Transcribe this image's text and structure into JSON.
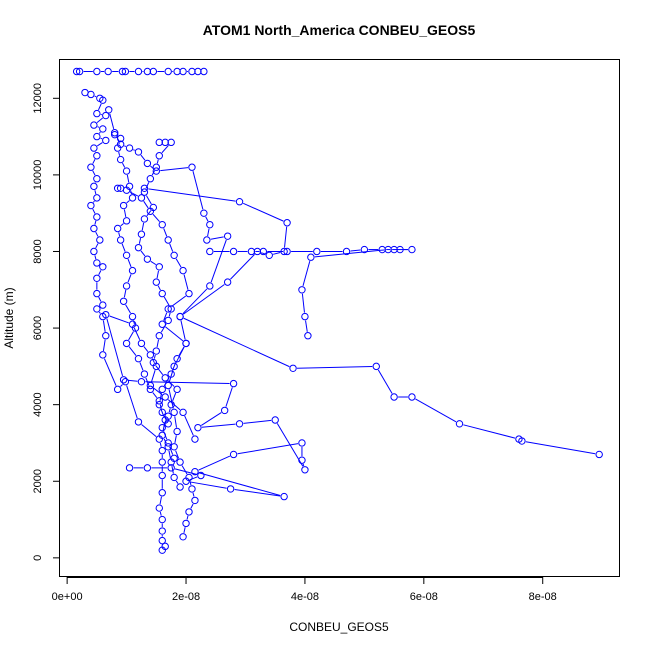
{
  "chart_data": {
    "type": "scatter",
    "title": "ATOM1 North_America CONBEU_GEOS5",
    "xlabel": "CONBEU_GEOS5",
    "ylabel": "Altitude (m)",
    "xlim": [
      -1.2e-09,
      9.3e-08
    ],
    "ylim": [
      -500,
      13000
    ],
    "x_ticks": [
      0,
      2e-08,
      4e-08,
      6e-08,
      8e-08
    ],
    "x_tick_labels": [
      "0e+00",
      "2e-08",
      "4e-08",
      "6e-08",
      "8e-08"
    ],
    "y_ticks": [
      0,
      2000,
      4000,
      6000,
      8000,
      10000,
      12000
    ],
    "y_tick_labels": [
      "0",
      "2000",
      "4000",
      "6000",
      "8000",
      "10000",
      "12000"
    ],
    "grid": false,
    "marker": "open-circle",
    "connected": true,
    "series_color": "#0000ff",
    "series": [
      {
        "points": [
          [
            1.6e-09,
            12700
          ],
          [
            2.1e-09,
            12700
          ],
          [
            5e-09,
            12700
          ],
          [
            6.9e-09,
            12700
          ],
          [
            9.3e-09,
            12700
          ],
          [
            9.8e-09,
            12700
          ],
          [
            1.2e-08,
            12700
          ],
          [
            1.35e-08,
            12700
          ],
          [
            1.45e-08,
            12700
          ],
          [
            1.7e-08,
            12700
          ],
          [
            1.85e-08,
            12700
          ],
          [
            1.95e-08,
            12700
          ],
          [
            2.1e-08,
            12700
          ],
          [
            2.2e-08,
            12700
          ],
          [
            2.3e-08,
            12700
          ]
        ]
      },
      {
        "points": [
          [
            3e-09,
            12150
          ],
          [
            4e-09,
            12100
          ],
          [
            5.5e-09,
            12000
          ],
          [
            6e-09,
            11950
          ],
          [
            5e-09,
            11600
          ],
          [
            6.5e-09,
            11550
          ],
          [
            4.5e-09,
            11300
          ],
          [
            6e-09,
            11200
          ],
          [
            5e-09,
            11000
          ],
          [
            6.5e-09,
            10900
          ],
          [
            4.5e-09,
            10700
          ],
          [
            5e-09,
            10500
          ],
          [
            4e-09,
            10200
          ],
          [
            5e-09,
            9900
          ],
          [
            4.5e-09,
            9700
          ],
          [
            5e-09,
            9400
          ],
          [
            4e-09,
            9200
          ],
          [
            5e-09,
            8900
          ],
          [
            4.5e-09,
            8600
          ],
          [
            5.5e-09,
            8300
          ],
          [
            4.5e-09,
            8000
          ],
          [
            5e-09,
            7700
          ],
          [
            6e-09,
            7600
          ],
          [
            5e-09,
            7300
          ],
          [
            5e-09,
            6900
          ],
          [
            6e-09,
            6600
          ],
          [
            5e-09,
            6500
          ],
          [
            6e-09,
            6300
          ],
          [
            6.5e-09,
            5800
          ],
          [
            6e-09,
            5300
          ],
          [
            8.5e-09,
            4400
          ],
          [
            9.8e-09,
            4600
          ],
          [
            1.2e-08,
            3550
          ],
          [
            1.55e-08,
            3100
          ],
          [
            1.6e-08,
            2800
          ],
          [
            1.6e-08,
            2500
          ],
          [
            1.6e-08,
            2150
          ],
          [
            1.6e-08,
            1700
          ],
          [
            1.55e-08,
            1300
          ],
          [
            1.6e-08,
            1000
          ],
          [
            1.6e-08,
            700
          ],
          [
            1.6e-08,
            450
          ],
          [
            1.65e-08,
            300
          ],
          [
            1.6e-08,
            200
          ]
        ]
      },
      {
        "points": [
          [
            7e-09,
            11700
          ],
          [
            8e-09,
            11100
          ],
          [
            9e-09,
            10800
          ],
          [
            1.05e-08,
            10700
          ],
          [
            1.2e-08,
            10600
          ],
          [
            1.35e-08,
            10300
          ],
          [
            1.5e-08,
            10100
          ],
          [
            2.1e-08,
            10200
          ],
          [
            2.3e-08,
            9000
          ],
          [
            2.4e-08,
            8700
          ],
          [
            2.35e-08,
            8300
          ],
          [
            2.7e-08,
            8400
          ],
          [
            2.4e-08,
            7100
          ],
          [
            1.9e-08,
            6300
          ],
          [
            2e-08,
            5600
          ],
          [
            1.8e-08,
            5000
          ],
          [
            1.7e-08,
            4500
          ],
          [
            1.8e-08,
            3800
          ],
          [
            1.85e-08,
            3300
          ],
          [
            1.8e-08,
            2900
          ],
          [
            1.9e-08,
            2500
          ],
          [
            2.05e-08,
            2100
          ],
          [
            2.1e-08,
            1800
          ],
          [
            2.15e-08,
            1500
          ],
          [
            2.05e-08,
            1200
          ],
          [
            2e-08,
            900
          ],
          [
            1.95e-08,
            550
          ]
        ]
      },
      {
        "points": [
          [
            2.4e-08,
            8000
          ],
          [
            2.8e-08,
            8000
          ],
          [
            3.1e-08,
            8000
          ],
          [
            3.3e-08,
            8000
          ],
          [
            3.7e-08,
            8000
          ],
          [
            4.2e-08,
            8000
          ],
          [
            4.7e-08,
            8000
          ],
          [
            5e-08,
            8050
          ],
          [
            5.3e-08,
            8050
          ],
          [
            5.5e-08,
            8050
          ],
          [
            5.6e-08,
            8050
          ],
          [
            5.8e-08,
            8050
          ],
          [
            5.4e-08,
            8050
          ],
          [
            4.1e-08,
            7850
          ],
          [
            3.95e-08,
            7000
          ],
          [
            4e-08,
            6300
          ],
          [
            4.05e-08,
            5800
          ]
        ]
      },
      {
        "points": [
          [
            1.3e-08,
            9650
          ],
          [
            2.9e-08,
            9300
          ],
          [
            3.7e-08,
            8750
          ],
          [
            3.65e-08,
            8000
          ],
          [
            3.4e-08,
            7900
          ],
          [
            3.2e-08,
            8000
          ],
          [
            2.7e-08,
            7200
          ],
          [
            1.9e-08,
            6300
          ],
          [
            3.8e-08,
            4950
          ],
          [
            5.2e-08,
            5000
          ],
          [
            5.5e-08,
            4200
          ],
          [
            5.8e-08,
            4200
          ],
          [
            6.6e-08,
            3500
          ],
          [
            7.6e-08,
            3100
          ],
          [
            7.65e-08,
            3050
          ],
          [
            8.95e-08,
            2700
          ]
        ]
      },
      {
        "points": [
          [
            1.05e-08,
            2350
          ],
          [
            1.35e-08,
            2350
          ],
          [
            1.75e-08,
            2350
          ],
          [
            2.25e-08,
            2150
          ],
          [
            2e-08,
            2000
          ],
          [
            2.75e-08,
            1800
          ],
          [
            3.65e-08,
            1600
          ],
          [
            2.15e-08,
            2250
          ],
          [
            2.8e-08,
            2700
          ],
          [
            3.95e-08,
            3000
          ],
          [
            3.95e-08,
            2550
          ],
          [
            4e-08,
            2300
          ],
          [
            3.5e-08,
            3600
          ],
          [
            2.9e-08,
            3500
          ],
          [
            2.2e-08,
            3400
          ],
          [
            2.65e-08,
            3850
          ],
          [
            2.8e-08,
            4550
          ],
          [
            1.25e-08,
            4600
          ],
          [
            9.5e-09,
            4650
          ],
          [
            6.5e-09,
            6350
          ],
          [
            1.1e-08,
            6100
          ],
          [
            1.25e-08,
            5600
          ],
          [
            1.4e-08,
            5300
          ],
          [
            1.5e-08,
            5000
          ],
          [
            1.4e-08,
            4500
          ],
          [
            1.65e-08,
            4200
          ],
          [
            1.95e-08,
            3800
          ],
          [
            2.15e-08,
            3100
          ]
        ]
      },
      {
        "points": [
          [
            1.55e-08,
            10850
          ],
          [
            1.65e-08,
            10850
          ],
          [
            1.75e-08,
            10850
          ],
          [
            1.55e-08,
            10500
          ],
          [
            1.5e-08,
            10200
          ],
          [
            1.4e-08,
            9900
          ],
          [
            1.3e-08,
            9550
          ],
          [
            1.45e-08,
            9150
          ],
          [
            1.3e-08,
            8850
          ],
          [
            1.25e-08,
            8450
          ],
          [
            1.2e-08,
            8100
          ],
          [
            1.35e-08,
            7800
          ],
          [
            1.55e-08,
            7600
          ],
          [
            1.5e-08,
            7200
          ],
          [
            1.6e-08,
            6900
          ],
          [
            1.75e-08,
            6500
          ],
          [
            1.7e-08,
            6200
          ],
          [
            1.55e-08,
            5800
          ],
          [
            1.5e-08,
            5400
          ],
          [
            1.45e-08,
            5100
          ],
          [
            1.65e-08,
            4700
          ],
          [
            1.85e-08,
            4400
          ],
          [
            1.75e-08,
            4000
          ],
          [
            1.7e-08,
            3700
          ],
          [
            1.6e-08,
            3400
          ],
          [
            1.7e-08,
            3000
          ],
          [
            1.8e-08,
            2600
          ]
        ]
      },
      {
        "points": [
          [
            8e-09,
            11050
          ],
          [
            9e-09,
            10950
          ],
          [
            8.5e-09,
            10700
          ],
          [
            9e-09,
            10400
          ],
          [
            1e-08,
            10100
          ],
          [
            1.05e-08,
            9700
          ],
          [
            1.1e-08,
            9400
          ],
          [
            9.5e-09,
            9200
          ],
          [
            1e-08,
            8800
          ],
          [
            8.5e-09,
            8600
          ],
          [
            9e-09,
            8300
          ],
          [
            1e-08,
            7900
          ],
          [
            1.1e-08,
            7500
          ],
          [
            1e-08,
            7100
          ],
          [
            9.5e-09,
            6700
          ],
          [
            1.1e-08,
            6300
          ],
          [
            1.15e-08,
            6000
          ],
          [
            1e-08,
            5600
          ],
          [
            1.2e-08,
            5200
          ],
          [
            1.3e-08,
            4800
          ],
          [
            1.4e-08,
            4400
          ],
          [
            1.55e-08,
            4100
          ],
          [
            1.6e-08,
            3800
          ],
          [
            1.7e-08,
            3500
          ]
        ]
      },
      {
        "points": [
          [
            8.5e-09,
            9650
          ],
          [
            9e-09,
            9650
          ],
          [
            1e-08,
            9600
          ],
          [
            1.25e-08,
            9400
          ],
          [
            1.4e-08,
            9050
          ],
          [
            1.6e-08,
            8700
          ],
          [
            1.7e-08,
            8300
          ],
          [
            1.8e-08,
            7900
          ],
          [
            1.95e-08,
            7500
          ],
          [
            2.05e-08,
            6900
          ],
          [
            1.7e-08,
            6500
          ],
          [
            1.6e-08,
            6100
          ],
          [
            2e-08,
            5600
          ],
          [
            1.85e-08,
            5200
          ],
          [
            1.75e-08,
            4800
          ],
          [
            1.6e-08,
            4400
          ],
          [
            1.55e-08,
            4000
          ],
          [
            1.65e-08,
            3600
          ],
          [
            1.6e-08,
            3200
          ],
          [
            1.7e-08,
            2900
          ],
          [
            1.75e-08,
            2500
          ],
          [
            1.8e-08,
            2100
          ],
          [
            1.9e-08,
            1850
          ]
        ]
      }
    ]
  }
}
